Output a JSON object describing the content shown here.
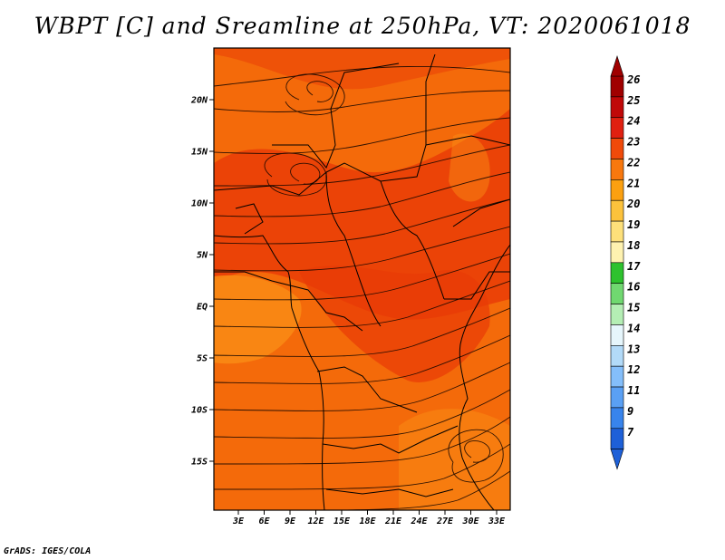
{
  "title": "WBPT [C] and Sreamline at 250hPa, VT: 2020061018",
  "credit": "GrADS: IGES/COLA",
  "map": {
    "lat_labels": [
      "20N",
      "15N",
      "10N",
      "5N",
      "EQ",
      "5S",
      "10S",
      "15S"
    ],
    "lon_labels": [
      "3E",
      "6E",
      "9E",
      "12E",
      "15E",
      "18E",
      "21E",
      "24E",
      "27E",
      "30E",
      "33E"
    ],
    "shading": {
      "background": "#f46a0a",
      "warm_patches": "#e83a06",
      "cooler_patches": "#fa8a14"
    }
  },
  "colorbar": {
    "labels": [
      "26",
      "25",
      "24",
      "23",
      "22",
      "21",
      "20",
      "19",
      "18",
      "17",
      "16",
      "15",
      "14",
      "13",
      "12",
      "11",
      "9",
      "7"
    ],
    "colors": [
      "#a00000",
      "#c00808",
      "#e02010",
      "#f04a0a",
      "#f8780e",
      "#fba010",
      "#fcc23c",
      "#fde07a",
      "#fef2b0",
      "#2ec22e",
      "#70d870",
      "#b4eeb4",
      "#e6f6fc",
      "#b2daf8",
      "#84befa",
      "#5aa0f4",
      "#3884ec",
      "#1e60d8"
    ]
  }
}
